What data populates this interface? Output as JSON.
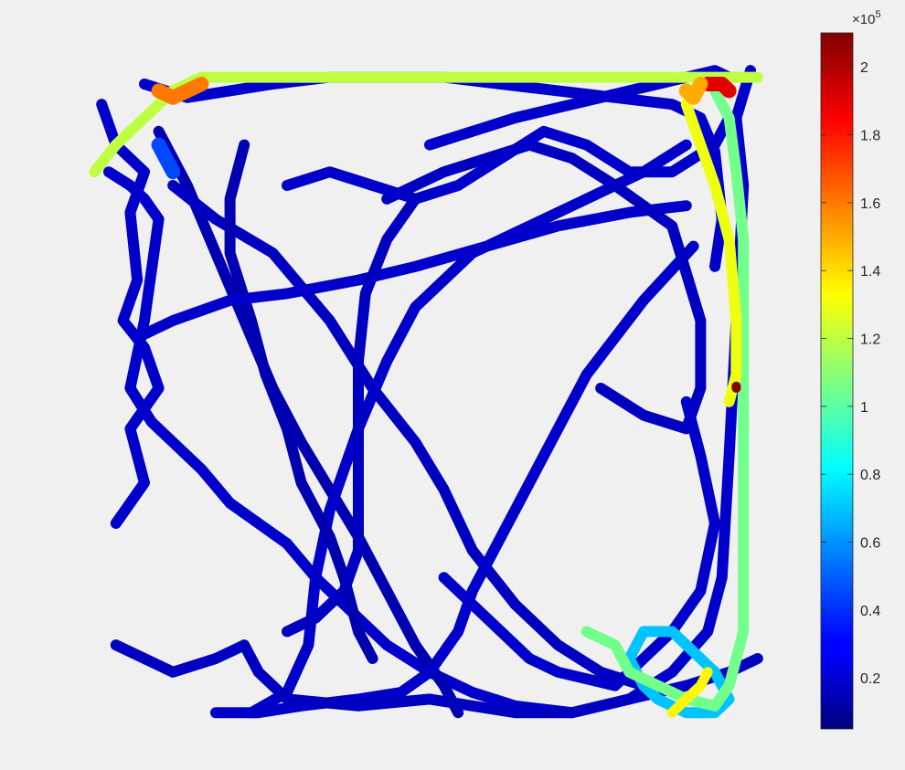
{
  "chart_data": {
    "type": "line",
    "title": "",
    "xlabel": "",
    "ylabel": "",
    "axes_visible": false,
    "background": "#f0f0f0",
    "colormap": "jet",
    "colorbar": {
      "location": "right",
      "clim": [
        0.05,
        2.1
      ],
      "exponent_label": "×10",
      "exponent_power": "5",
      "ticks": [
        0.2,
        0.4,
        0.6,
        0.8,
        1,
        1.2,
        1.4,
        1.6,
        1.8,
        2
      ],
      "tick_labels": [
        "0.2",
        "0.4",
        "0.6",
        "0.8",
        "1",
        "1.2",
        "1.4",
        "1.6",
        "1.8",
        "2"
      ]
    },
    "xlim": [
      0,
      100
    ],
    "ylim": [
      0,
      100
    ],
    "series": [
      {
        "c": 0.2,
        "w": 12,
        "pts": [
          [
            5,
            82
          ],
          [
            8,
            80
          ],
          [
            10,
            78
          ],
          [
            12,
            75
          ],
          [
            10,
            60
          ],
          [
            8,
            50
          ],
          [
            11,
            45
          ],
          [
            14,
            42
          ],
          [
            18,
            38
          ],
          [
            22,
            33
          ],
          [
            26,
            30
          ],
          [
            30,
            27
          ],
          [
            34,
            22
          ],
          [
            38,
            18
          ],
          [
            44,
            12
          ],
          [
            50,
            8
          ],
          [
            56,
            5
          ],
          [
            62,
            3
          ],
          [
            70,
            2
          ],
          [
            78,
            4
          ],
          [
            84,
            8
          ],
          [
            89,
            14
          ],
          [
            91,
            22
          ],
          [
            92,
            40
          ],
          [
            93,
            60
          ],
          [
            94,
            80
          ],
          [
            93,
            90
          ],
          [
            95,
            97
          ]
        ]
      },
      {
        "c": 0.2,
        "w": 12,
        "pts": [
          [
            10,
            95
          ],
          [
            16,
            93
          ],
          [
            22,
            94
          ],
          [
            28,
            95
          ],
          [
            36,
            96
          ],
          [
            44,
            96
          ],
          [
            52,
            96
          ],
          [
            60,
            95
          ],
          [
            68,
            94
          ],
          [
            76,
            93
          ],
          [
            84,
            92
          ],
          [
            88,
            90
          ],
          [
            90,
            85
          ],
          [
            91,
            75
          ],
          [
            90,
            68
          ]
        ]
      },
      {
        "c": 0.15,
        "w": 12,
        "pts": [
          [
            12,
            88
          ],
          [
            16,
            80
          ],
          [
            20,
            70
          ],
          [
            24,
            60
          ],
          [
            28,
            50
          ],
          [
            32,
            42
          ],
          [
            36,
            35
          ],
          [
            40,
            28
          ],
          [
            44,
            20
          ],
          [
            48,
            12
          ],
          [
            52,
            6
          ],
          [
            54,
            2
          ]
        ]
      },
      {
        "c": 0.18,
        "w": 12,
        "pts": [
          [
            14,
            80
          ],
          [
            20,
            75
          ],
          [
            28,
            70
          ],
          [
            36,
            60
          ],
          [
            42,
            50
          ],
          [
            48,
            42
          ],
          [
            52,
            35
          ],
          [
            56,
            26
          ],
          [
            62,
            18
          ],
          [
            68,
            12
          ],
          [
            74,
            8
          ],
          [
            80,
            6
          ]
        ]
      },
      {
        "c": 0.2,
        "w": 12,
        "pts": [
          [
            20,
            2
          ],
          [
            26,
            2
          ],
          [
            32,
            3
          ],
          [
            40,
            4
          ],
          [
            46,
            5
          ],
          [
            50,
            8
          ],
          [
            54,
            14
          ],
          [
            56,
            20
          ],
          [
            60,
            28
          ],
          [
            66,
            40
          ],
          [
            72,
            52
          ],
          [
            80,
            63
          ],
          [
            87,
            71
          ]
        ]
      },
      {
        "c": 0.2,
        "w": 12,
        "pts": [
          [
            25,
            2
          ],
          [
            30,
            5
          ],
          [
            33,
            12
          ],
          [
            34,
            22
          ],
          [
            36,
            32
          ],
          [
            40,
            44
          ],
          [
            44,
            54
          ],
          [
            48,
            62
          ],
          [
            56,
            70
          ],
          [
            64,
            74
          ],
          [
            72,
            78
          ],
          [
            80,
            82
          ],
          [
            86,
            86
          ]
        ]
      },
      {
        "c": 0.2,
        "w": 12,
        "pts": [
          [
            4,
            92
          ],
          [
            6,
            86
          ],
          [
            10,
            82
          ],
          [
            8,
            76
          ],
          [
            9,
            66
          ],
          [
            7,
            60
          ],
          [
            10,
            56
          ],
          [
            12,
            50
          ],
          [
            8,
            44
          ],
          [
            10,
            36
          ],
          [
            6,
            30
          ]
        ]
      },
      {
        "c": 0.15,
        "w": 12,
        "pts": [
          [
            24,
            86
          ],
          [
            22,
            78
          ],
          [
            22,
            70
          ],
          [
            25,
            60
          ],
          [
            27,
            52
          ],
          [
            30,
            44
          ],
          [
            32,
            36
          ],
          [
            36,
            28
          ],
          [
            38,
            22
          ],
          [
            40,
            14
          ],
          [
            42,
            10
          ]
        ]
      },
      {
        "c": 0.2,
        "w": 12,
        "pts": [
          [
            10,
            58
          ],
          [
            14,
            60
          ],
          [
            22,
            63
          ],
          [
            30,
            64
          ],
          [
            40,
            66
          ],
          [
            48,
            68
          ],
          [
            58,
            71
          ],
          [
            68,
            74
          ],
          [
            78,
            76
          ],
          [
            86,
            77
          ]
        ]
      },
      {
        "c": 0.18,
        "w": 12,
        "pts": [
          [
            44,
            78
          ],
          [
            52,
            82
          ],
          [
            58,
            84
          ],
          [
            64,
            86
          ],
          [
            70,
            84
          ],
          [
            76,
            80
          ],
          [
            84,
            74
          ],
          [
            88,
            60
          ],
          [
            88,
            50
          ],
          [
            86,
            44
          ],
          [
            80,
            46
          ],
          [
            74,
            50
          ]
        ]
      },
      {
        "c": 0.2,
        "w": 12,
        "pts": [
          [
            30,
            80
          ],
          [
            36,
            82
          ],
          [
            42,
            80
          ],
          [
            48,
            78
          ],
          [
            54,
            80
          ],
          [
            60,
            84
          ],
          [
            66,
            88
          ],
          [
            72,
            86
          ],
          [
            78,
            82
          ],
          [
            84,
            82
          ],
          [
            90,
            86
          ],
          [
            92,
            90
          ]
        ]
      },
      {
        "c": 0.2,
        "w": 12,
        "pts": [
          [
            50,
            86
          ],
          [
            56,
            88
          ],
          [
            62,
            90
          ],
          [
            70,
            92
          ],
          [
            78,
            94
          ],
          [
            86,
            96
          ],
          [
            90,
            97
          ],
          [
            92,
            96
          ]
        ]
      },
      {
        "c": 0.18,
        "w": 12,
        "pts": [
          [
            30,
            14
          ],
          [
            34,
            16
          ],
          [
            38,
            20
          ],
          [
            40,
            26
          ],
          [
            40,
            34
          ],
          [
            40,
            44
          ],
          [
            40,
            54
          ],
          [
            41,
            64
          ],
          [
            44,
            72
          ],
          [
            48,
            78
          ]
        ]
      },
      {
        "c": 0.18,
        "w": 12,
        "pts": [
          [
            6,
            12
          ],
          [
            14,
            8
          ],
          [
            20,
            10
          ],
          [
            24,
            12
          ],
          [
            26,
            8
          ],
          [
            30,
            4
          ],
          [
            40,
            3
          ],
          [
            50,
            4
          ],
          [
            56,
            3
          ],
          [
            62,
            2
          ],
          [
            70,
            2
          ],
          [
            78,
            4
          ],
          [
            86,
            6
          ],
          [
            92,
            8
          ],
          [
            96,
            10
          ]
        ]
      },
      {
        "c": 0.2,
        "w": 12,
        "pts": [
          [
            52,
            22
          ],
          [
            56,
            18
          ],
          [
            60,
            14
          ],
          [
            64,
            10
          ],
          [
            68,
            8
          ],
          [
            72,
            7
          ],
          [
            76,
            6
          ],
          [
            80,
            10
          ],
          [
            84,
            14
          ],
          [
            88,
            20
          ],
          [
            90,
            30
          ],
          [
            88,
            40
          ],
          [
            86,
            48
          ]
        ]
      },
      {
        "c": 0.7,
        "w": 12,
        "pts": [
          [
            78,
            10
          ],
          [
            80,
            14
          ],
          [
            84,
            14
          ],
          [
            88,
            10
          ],
          [
            90,
            8
          ],
          [
            92,
            4
          ],
          [
            90,
            2
          ],
          [
            86,
            2
          ],
          [
            82,
            4
          ],
          [
            80,
            6
          ],
          [
            78,
            10
          ]
        ]
      },
      {
        "c": 1.2,
        "w": 12,
        "pts": [
          [
            3,
            82
          ],
          [
            6,
            86
          ],
          [
            10,
            90
          ],
          [
            14,
            94
          ],
          [
            18,
            96
          ],
          [
            24,
            96
          ],
          [
            32,
            96
          ],
          [
            40,
            96
          ],
          [
            48,
            96
          ],
          [
            56,
            96
          ],
          [
            64,
            96
          ],
          [
            72,
            96
          ],
          [
            80,
            96
          ],
          [
            88,
            96
          ],
          [
            94,
            96
          ],
          [
            96,
            96
          ]
        ]
      },
      {
        "c": 1.05,
        "w": 12,
        "pts": [
          [
            90,
            94
          ],
          [
            92,
            90
          ],
          [
            93,
            82
          ],
          [
            94,
            72
          ],
          [
            94,
            60
          ],
          [
            94,
            48
          ],
          [
            94,
            36
          ],
          [
            94,
            24
          ],
          [
            94,
            14
          ],
          [
            92,
            6
          ],
          [
            90,
            3
          ],
          [
            86,
            4
          ],
          [
            82,
            6
          ],
          [
            78,
            8
          ],
          [
            76,
            12
          ],
          [
            72,
            14
          ]
        ]
      },
      {
        "c": 1.3,
        "w": 12,
        "pts": [
          [
            86,
            92
          ],
          [
            88,
            86
          ],
          [
            90,
            80
          ],
          [
            92,
            72
          ],
          [
            93,
            60
          ],
          [
            93,
            52
          ],
          [
            92,
            48
          ]
        ]
      },
      {
        "c": 1.35,
        "w": 11,
        "pts": [
          [
            84,
            2
          ],
          [
            86,
            4
          ],
          [
            88,
            6
          ],
          [
            89,
            8
          ]
        ]
      },
      {
        "c": 1.6,
        "w": 16,
        "pts": [
          [
            12,
            94
          ],
          [
            14,
            93
          ],
          [
            16,
            94
          ],
          [
            18,
            95
          ]
        ]
      },
      {
        "c": 1.9,
        "w": 16,
        "pts": [
          [
            89,
            95
          ],
          [
            91,
            95
          ],
          [
            92,
            94
          ]
        ]
      },
      {
        "c": 1.5,
        "w": 16,
        "pts": [
          [
            86,
            94
          ],
          [
            87,
            93
          ],
          [
            88,
            95
          ]
        ]
      },
      {
        "c": 2.1,
        "w": 10,
        "pts": [
          [
            93,
            50
          ],
          [
            93,
            50.3
          ]
        ]
      },
      {
        "c": 0.45,
        "w": 16,
        "pts": [
          [
            12,
            86
          ],
          [
            13,
            84
          ],
          [
            14,
            82
          ]
        ]
      }
    ]
  }
}
